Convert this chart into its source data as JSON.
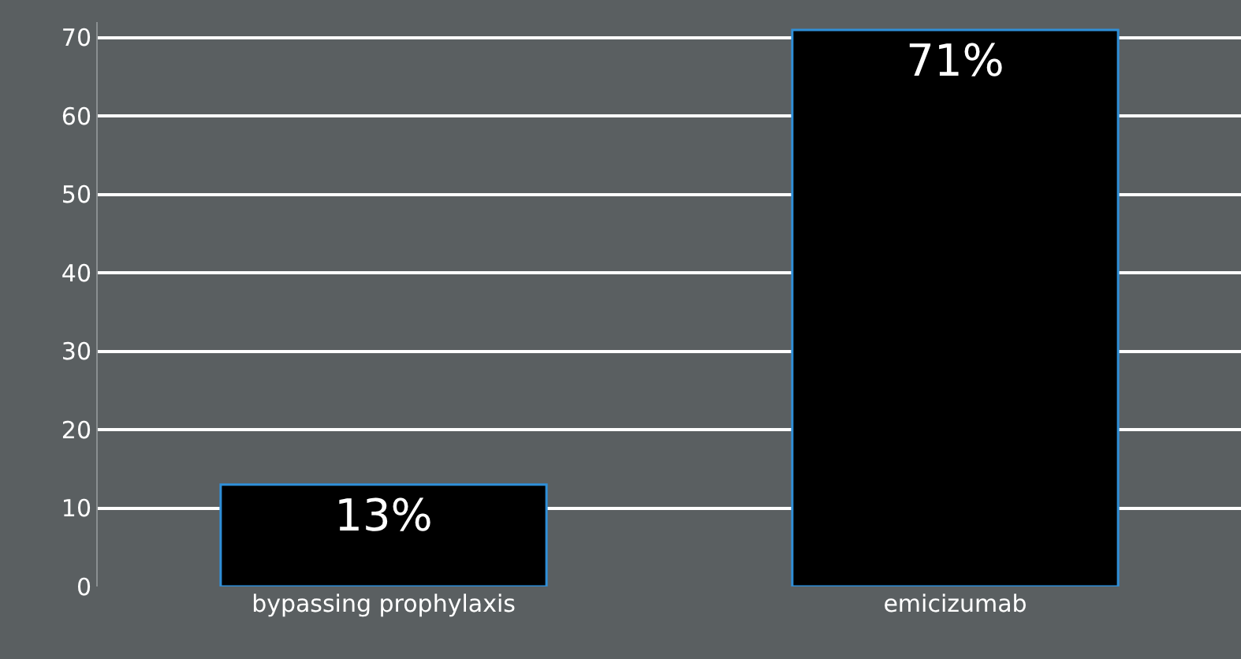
{
  "chart_data": {
    "type": "bar",
    "categories": [
      "bypassing prophylaxis",
      "emicizumab"
    ],
    "values": [
      13,
      71
    ],
    "value_labels": [
      "13%",
      "71%"
    ],
    "color": "#000000",
    "ylim": [
      0,
      72
    ],
    "yticks": [
      0,
      10,
      20,
      30,
      40,
      50,
      60,
      70
    ],
    "grid": "y",
    "legend": false
  }
}
